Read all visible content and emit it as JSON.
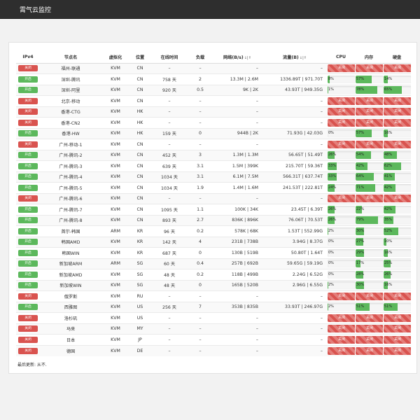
{
  "app": {
    "brand": "霄气云监控"
  },
  "colors": {
    "online": "#5cb85c",
    "offline": "#d9534f",
    "header": "#2e2e2e"
  },
  "table": {
    "headers": {
      "ipv4": "IPv4",
      "name": "节点名",
      "virt": "虚拟化",
      "location": "位置",
      "uptime": "在线时间",
      "load": "负载",
      "network": "网络(B/s)",
      "traffic": "流量(B)",
      "cpu": "CPU",
      "mem": "内存",
      "disk": "硬盘"
    },
    "sort_icon": "↓|↑",
    "online_label": "开启",
    "offline_label": "关闭",
    "down_label": "关闭",
    "rows": [
      {
        "on": false,
        "name": "福州-联通",
        "virt": "KVM",
        "loc": "CN",
        "uptime": "–",
        "load": "–",
        "net": "–",
        "traffic": "–",
        "cpu": null,
        "mem": null,
        "disk": null
      },
      {
        "on": true,
        "name": "深圳-腾讯",
        "virt": "KVM",
        "loc": "CN",
        "uptime": "758 天",
        "load": "2",
        "net": "13.3M | 2.6M",
        "traffic": "1336.89T | 971.70T",
        "cpu": 8,
        "mem": 57,
        "disk": 14
      },
      {
        "on": true,
        "name": "深圳-阿里",
        "virt": "KVM",
        "loc": "CN",
        "uptime": "920 天",
        "load": "0.5",
        "net": "9K | 2K",
        "traffic": "43.93T | 949.35G",
        "cpu": 1,
        "mem": 78,
        "disk": 65
      },
      {
        "on": false,
        "name": "北京-移动",
        "virt": "KVM",
        "loc": "CN",
        "uptime": "–",
        "load": "–",
        "net": "–",
        "traffic": "–",
        "cpu": null,
        "mem": null,
        "disk": null
      },
      {
        "on": false,
        "name": "香港-CTG",
        "virt": "KVM",
        "loc": "HK",
        "uptime": "–",
        "load": "–",
        "net": "–",
        "traffic": "–",
        "cpu": null,
        "mem": null,
        "disk": null
      },
      {
        "on": false,
        "name": "香港-CN2",
        "virt": "KVM",
        "loc": "HK",
        "uptime": "–",
        "load": "–",
        "net": "–",
        "traffic": "–",
        "cpu": null,
        "mem": null,
        "disk": null
      },
      {
        "on": true,
        "name": "香港-HW",
        "virt": "KVM",
        "loc": "HK",
        "uptime": "159 天",
        "load": "0",
        "net": "944B | 2K",
        "traffic": "71.93G | 42.03G",
        "cpu": 0,
        "mem": 57,
        "disk": 16
      },
      {
        "on": false,
        "name": "广州-移动-1",
        "virt": "KVM",
        "loc": "CN",
        "uptime": "–",
        "load": "–",
        "net": "–",
        "traffic": "–",
        "cpu": null,
        "mem": null,
        "disk": null
      },
      {
        "on": true,
        "name": "广州-腾讯-2",
        "virt": "KVM",
        "loc": "CN",
        "uptime": "452 天",
        "load": "3",
        "net": "1.3M | 1.3M",
        "traffic": "56.65T | 51.49T",
        "cpu": 26,
        "mem": 54,
        "disk": 48
      },
      {
        "on": true,
        "name": "广州-腾讯-3",
        "virt": "KVM",
        "loc": "CN",
        "uptime": "639 天",
        "load": "3.1",
        "net": "1.5M | 399K",
        "traffic": "215.70T | 59.36T",
        "cpu": 33,
        "mem": 42,
        "disk": 62
      },
      {
        "on": true,
        "name": "广州-腾讯-4",
        "virt": "KVM",
        "loc": "CN",
        "uptime": "1034 天",
        "load": "3.1",
        "net": "6.1M | 7.5M",
        "traffic": "566.31T | 637.74T",
        "cpu": 33,
        "mem": 64,
        "disk": 41
      },
      {
        "on": true,
        "name": "广州-腾讯-5",
        "virt": "KVM",
        "loc": "CN",
        "uptime": "1034 天",
        "load": "1.9",
        "net": "1.4M | 1.6M",
        "traffic": "241.53T | 222.81T",
        "cpu": 24,
        "mem": 71,
        "disk": 42
      },
      {
        "on": false,
        "name": "广州-腾讯-6",
        "virt": "KVM",
        "loc": "CN",
        "uptime": "–",
        "load": "–",
        "net": "–",
        "traffic": "–",
        "cpu": null,
        "mem": null,
        "disk": null
      },
      {
        "on": true,
        "name": "广州-腾讯-7",
        "virt": "KVM",
        "loc": "CN",
        "uptime": "1095 天",
        "load": "1.1",
        "net": "100K | 34K",
        "traffic": "23.45T | 6.39T",
        "cpu": 26,
        "mem": 22,
        "disk": 42
      },
      {
        "on": true,
        "name": "广州-腾讯-8",
        "virt": "KVM",
        "loc": "CN",
        "uptime": "893 天",
        "load": "2.7",
        "net": "836K | 896K",
        "traffic": "76.06T | 70.53T",
        "cpu": 26,
        "mem": 79,
        "disk": 35
      },
      {
        "on": true,
        "name": "首尔-韩国",
        "virt": "ARM",
        "loc": "KR",
        "uptime": "96 天",
        "load": "0.2",
        "net": "578K | 68K",
        "traffic": "1.53T | 552.99G",
        "cpu": 2,
        "mem": 30,
        "disk": 52
      },
      {
        "on": true,
        "name": "韩国AMD",
        "virt": "KVM",
        "loc": "KR",
        "uptime": "142 天",
        "load": "4",
        "net": "231B | 738B",
        "traffic": "3.94G | 8.37G",
        "cpu": 0,
        "mem": 27,
        "disk": 10
      },
      {
        "on": true,
        "name": "韩国WIN",
        "virt": "KVM",
        "loc": "KR",
        "uptime": "687 天",
        "load": "0",
        "net": "130B | 519B",
        "traffic": "50.80T | 1.64T",
        "cpu": 0,
        "mem": 29,
        "disk": 16
      },
      {
        "on": true,
        "name": "新加坡ARM",
        "virt": "ARM",
        "loc": "SG",
        "uptime": "60 天",
        "load": "0.4",
        "net": "257B | 692B",
        "traffic": "59.65G | 59.19G",
        "cpu": 0,
        "mem": 17,
        "disk": 25
      },
      {
        "on": true,
        "name": "新加坡AMD",
        "virt": "KVM",
        "loc": "SG",
        "uptime": "48 天",
        "load": "0.2",
        "net": "118B | 499B",
        "traffic": "2.24G | 6.52G",
        "cpu": 0,
        "mem": 28,
        "disk": 26
      },
      {
        "on": true,
        "name": "新加坡WIN",
        "virt": "KVM",
        "loc": "SG",
        "uptime": "48 天",
        "load": "0",
        "net": "165B | 520B",
        "traffic": "2.96G | 6.55G",
        "cpu": 2,
        "mem": 30,
        "disk": 16
      },
      {
        "on": false,
        "name": "俄罗斯",
        "virt": "KVM",
        "loc": "RU",
        "uptime": "–",
        "load": "–",
        "net": "–",
        "traffic": "–",
        "cpu": null,
        "mem": null,
        "disk": null
      },
      {
        "on": true,
        "name": "西雅图",
        "virt": "KVM",
        "loc": "US",
        "uptime": "256 天",
        "load": "7",
        "net": "353B | 835B",
        "traffic": "33.93T | 246.97G",
        "cpu": 2,
        "mem": 51,
        "disk": 51
      },
      {
        "on": false,
        "name": "洛杉矶",
        "virt": "KVM",
        "loc": "US",
        "uptime": "–",
        "load": "–",
        "net": "–",
        "traffic": "–",
        "cpu": null,
        "mem": null,
        "disk": null
      },
      {
        "on": false,
        "name": "马来",
        "virt": "KVM",
        "loc": "MY",
        "uptime": "–",
        "load": "–",
        "net": "–",
        "traffic": "–",
        "cpu": null,
        "mem": null,
        "disk": null
      },
      {
        "on": false,
        "name": "日本",
        "virt": "KVM",
        "loc": "JP",
        "uptime": "–",
        "load": "–",
        "net": "–",
        "traffic": "–",
        "cpu": null,
        "mem": null,
        "disk": null
      },
      {
        "on": false,
        "name": "德国",
        "virt": "KVM",
        "loc": "DE",
        "uptime": "–",
        "load": "–",
        "net": "–",
        "traffic": "–",
        "cpu": null,
        "mem": null,
        "disk": null
      }
    ]
  },
  "footer": {
    "updated": "最后更新: 从不."
  }
}
